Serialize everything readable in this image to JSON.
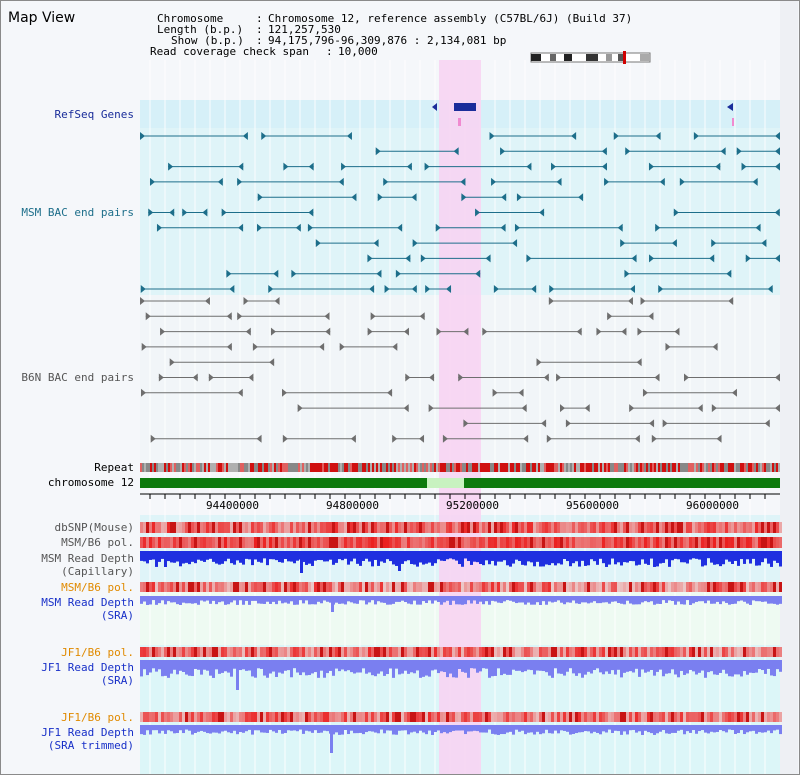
{
  "title": "Map View",
  "info": {
    "chromosome_label": "Chromosome",
    "chromosome_value": "Chromosome 12, reference assembly (C57BL/6J) (Build 37)",
    "length_label": "Length (b.p.)",
    "length_value": "121,257,530",
    "show_label": "Show (b.p.)",
    "show_value": "94,175,796-96,309,876 : 2,134,081 bp",
    "coverage_label": "Read coverage check span",
    "coverage_value": "10,000"
  },
  "tracks": {
    "refseq": "RefSeq Genes",
    "msm_bac": "MSM BAC end pairs",
    "b6n_bac": "B6N BAC end pairs",
    "repeat": "Repeat",
    "chromosome": "chromosome 12",
    "dbsnp": "dbSNP(Mouse)",
    "msm_b6_pol_1": "MSM/B6 pol.",
    "msm_read_depth_cap_1": "MSM Read Depth",
    "msm_read_depth_cap_2": "(Capillary)",
    "msm_b6_pol_2": "MSM/B6 pol.",
    "msm_read_depth_sra_1": "MSM Read Depth",
    "msm_read_depth_sra_2": "(SRA)",
    "jf1_b6_pol_1": "JF1/B6 pol.",
    "jf1_read_depth_sra_1": "JF1 Read Depth",
    "jf1_read_depth_sra_2": "(SRA)",
    "jf1_b6_pol_2": "JF1/B6 pol.",
    "jf1_read_depth_trim_1": "JF1 Read Depth",
    "jf1_read_depth_trim_2": "(SRA trimmed)"
  },
  "ruler": {
    "ticks": [
      "94400000",
      "94800000",
      "95200000",
      "95600000",
      "96000000"
    ]
  },
  "colors": {
    "highlight": "#f7d4f2",
    "refseq_bg": "#d6f0f8",
    "msm_bg": "#dff4f8",
    "b6n_bg": "#f1f5f8",
    "sra_bg": "#eefaf2",
    "jf1_bg": "#dcf6f8",
    "bac_teal": "#1d6e8a",
    "bac_gray": "#6e6e6e",
    "depth_blue": "#1f2fe0",
    "depth_light": "#7a7ff0",
    "chrom_green": "#0d7a0d"
  }
}
